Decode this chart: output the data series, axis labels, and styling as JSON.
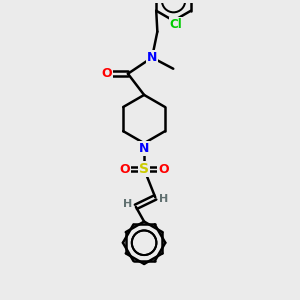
{
  "bg_color": "#ebebeb",
  "atom_colors": {
    "C": "#000000",
    "N": "#0000ff",
    "O": "#ff0000",
    "S": "#cccc00",
    "Cl": "#00cc00",
    "H": "#607070"
  },
  "bond_color": "#000000",
  "bond_width": 1.8,
  "font_size": 9
}
